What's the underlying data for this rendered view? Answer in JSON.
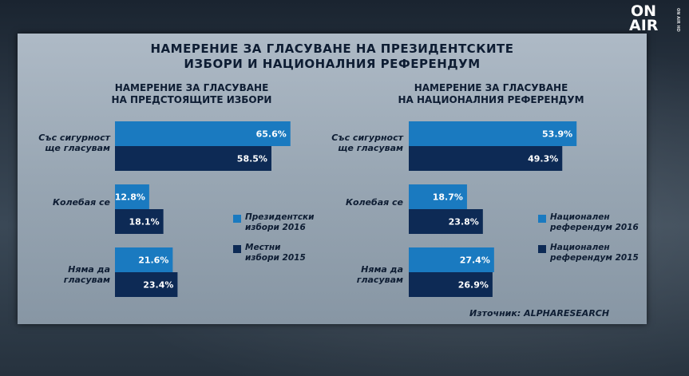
{
  "logo": {
    "line1": "ON",
    "line2": "AIR",
    "small": "ON AIR HD"
  },
  "title_line1": "НАМЕРЕНИЕ ЗА ГЛАСУВАНЕ НА ПРЕЗИДЕНТСКИТЕ",
  "title_line2": "ИЗБОРИ И НАЦИОНАЛНИЯ РЕФЕРЕНДУМ",
  "source": "Източник: ALPHARESEARCH",
  "colors": {
    "light": "#1a7ac0",
    "dark": "#0d2a55"
  },
  "chart_data": [
    {
      "type": "bar",
      "title_line1": "НАМЕРЕНИЕ ЗА ГЛАСУВАНЕ",
      "title_line2": "НА ПРЕДСТОЯЩИТЕ ИЗБОРИ",
      "categories": [
        {
          "line1": "Със сигурност",
          "line2": "ще гласувам"
        },
        {
          "line1": "Колебая се",
          "line2": ""
        },
        {
          "line1": "Няма да",
          "line2": "гласувам"
        }
      ],
      "series": [
        {
          "name_line1": "Президентски",
          "name_line2": "избори 2016",
          "values": [
            65.6,
            12.8,
            21.6
          ],
          "labels": [
            "65.6%",
            "12.8%",
            "21.6%"
          ]
        },
        {
          "name_line1": "Местни",
          "name_line2": "избори 2015",
          "values": [
            58.5,
            18.1,
            23.4
          ],
          "labels": [
            "58.5%",
            "18.1%",
            "23.4%"
          ]
        }
      ]
    },
    {
      "type": "bar",
      "title_line1": "НАМЕРЕНИЕ ЗА ГЛАСУВАНЕ",
      "title_line2": "НА НАЦИОНАЛНИЯ РЕФЕРЕНДУМ",
      "categories": [
        {
          "line1": "Със сигурност",
          "line2": "ще гласувам"
        },
        {
          "line1": "Колебая се",
          "line2": ""
        },
        {
          "line1": "Няма да",
          "line2": "гласувам"
        }
      ],
      "series": [
        {
          "name_line1": "Национален",
          "name_line2": "референдум 2016",
          "values": [
            53.9,
            18.7,
            27.4
          ],
          "labels": [
            "53.9%",
            "18.7%",
            "27.4%"
          ]
        },
        {
          "name_line1": "Национален",
          "name_line2": "референдум 2015",
          "values": [
            49.3,
            23.8,
            26.9
          ],
          "labels": [
            "49.3%",
            "23.8%",
            "26.9%"
          ]
        }
      ]
    }
  ]
}
